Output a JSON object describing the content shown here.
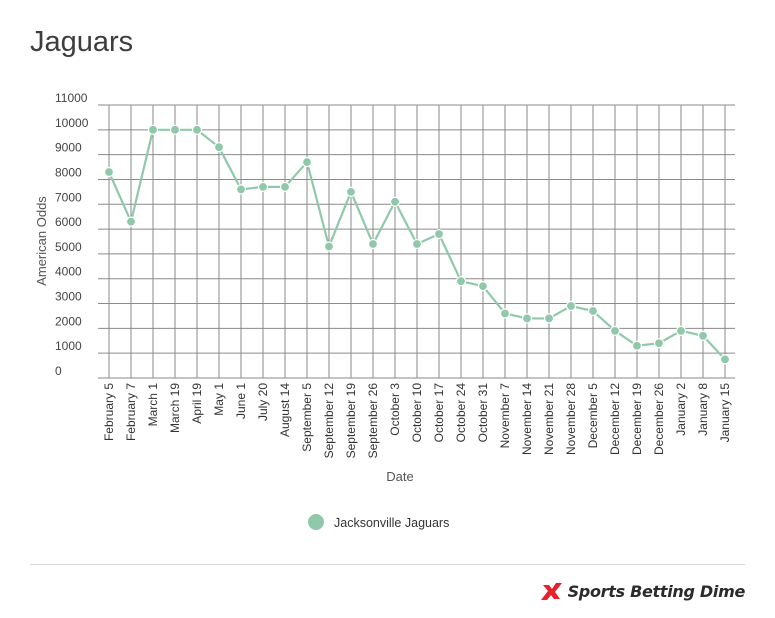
{
  "page": {
    "title": "Jaguars"
  },
  "chart_data": {
    "type": "line",
    "title": "Jaguars",
    "xlabel": "Date",
    "ylabel": "American Odds",
    "ylim": [
      0,
      11000
    ],
    "yticks": [
      0,
      1000,
      2000,
      3000,
      4000,
      5000,
      6000,
      7000,
      8000,
      9000,
      10000,
      11000
    ],
    "grid": true,
    "legend_position": "bottom-center",
    "categories": [
      "February 5",
      "February 7",
      "March 1",
      "March 19",
      "April 19",
      "May 1",
      "June 1",
      "July 20",
      "August 14",
      "September 5",
      "September 12",
      "September 19",
      "September 26",
      "October 3",
      "October 10",
      "October 17",
      "October 24",
      "October 31",
      "November 7",
      "November 14",
      "November 21",
      "November 28",
      "December 5",
      "December 12",
      "December 19",
      "December 26",
      "January 2",
      "January 8",
      "January 15"
    ],
    "series": [
      {
        "name": "Jacksonville Jaguars",
        "color": "#90c9aa",
        "values": [
          8300,
          6300,
          10000,
          10000,
          10000,
          9300,
          7600,
          7700,
          7700,
          8700,
          5300,
          7500,
          5400,
          7100,
          5400,
          5800,
          3900,
          3700,
          2600,
          2400,
          2400,
          2900,
          2700,
          1900,
          1300,
          1400,
          1900,
          1700,
          750
        ]
      }
    ]
  },
  "branding": {
    "name": "Sports Betting Dime",
    "accent_color": "#e8202a"
  }
}
